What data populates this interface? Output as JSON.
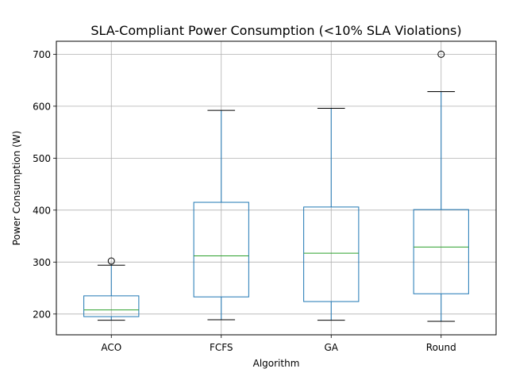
{
  "chart_data": {
    "type": "boxplot",
    "title": "SLA-Compliant Power Consumption (<10% SLA Violations)",
    "xlabel": "Algorithm",
    "ylabel": "Power Consumption (W)",
    "ylim": [
      160,
      725
    ],
    "yticks": [
      200,
      300,
      400,
      500,
      600,
      700
    ],
    "grid": true,
    "categories": [
      "ACO",
      "FCFS",
      "GA",
      "Round"
    ],
    "boxes": [
      {
        "category": "ACO",
        "whisker_low": 188,
        "q1": 195,
        "median": 208,
        "q3": 235,
        "whisker_high": 294,
        "outliers": [
          302
        ]
      },
      {
        "category": "FCFS",
        "whisker_low": 189,
        "q1": 233,
        "median": 312,
        "q3": 415,
        "whisker_high": 592,
        "outliers": []
      },
      {
        "category": "GA",
        "whisker_low": 188,
        "q1": 224,
        "median": 317,
        "q3": 406,
        "whisker_high": 596,
        "outliers": []
      },
      {
        "category": "Round",
        "whisker_low": 186,
        "q1": 239,
        "median": 329,
        "q3": 401,
        "whisker_high": 628,
        "outliers": [
          700
        ]
      }
    ],
    "colors": {
      "box": "#1f77b4",
      "median": "#2ca02c",
      "whisker_cap": "#000000",
      "grid": "#b0b0b0"
    }
  }
}
